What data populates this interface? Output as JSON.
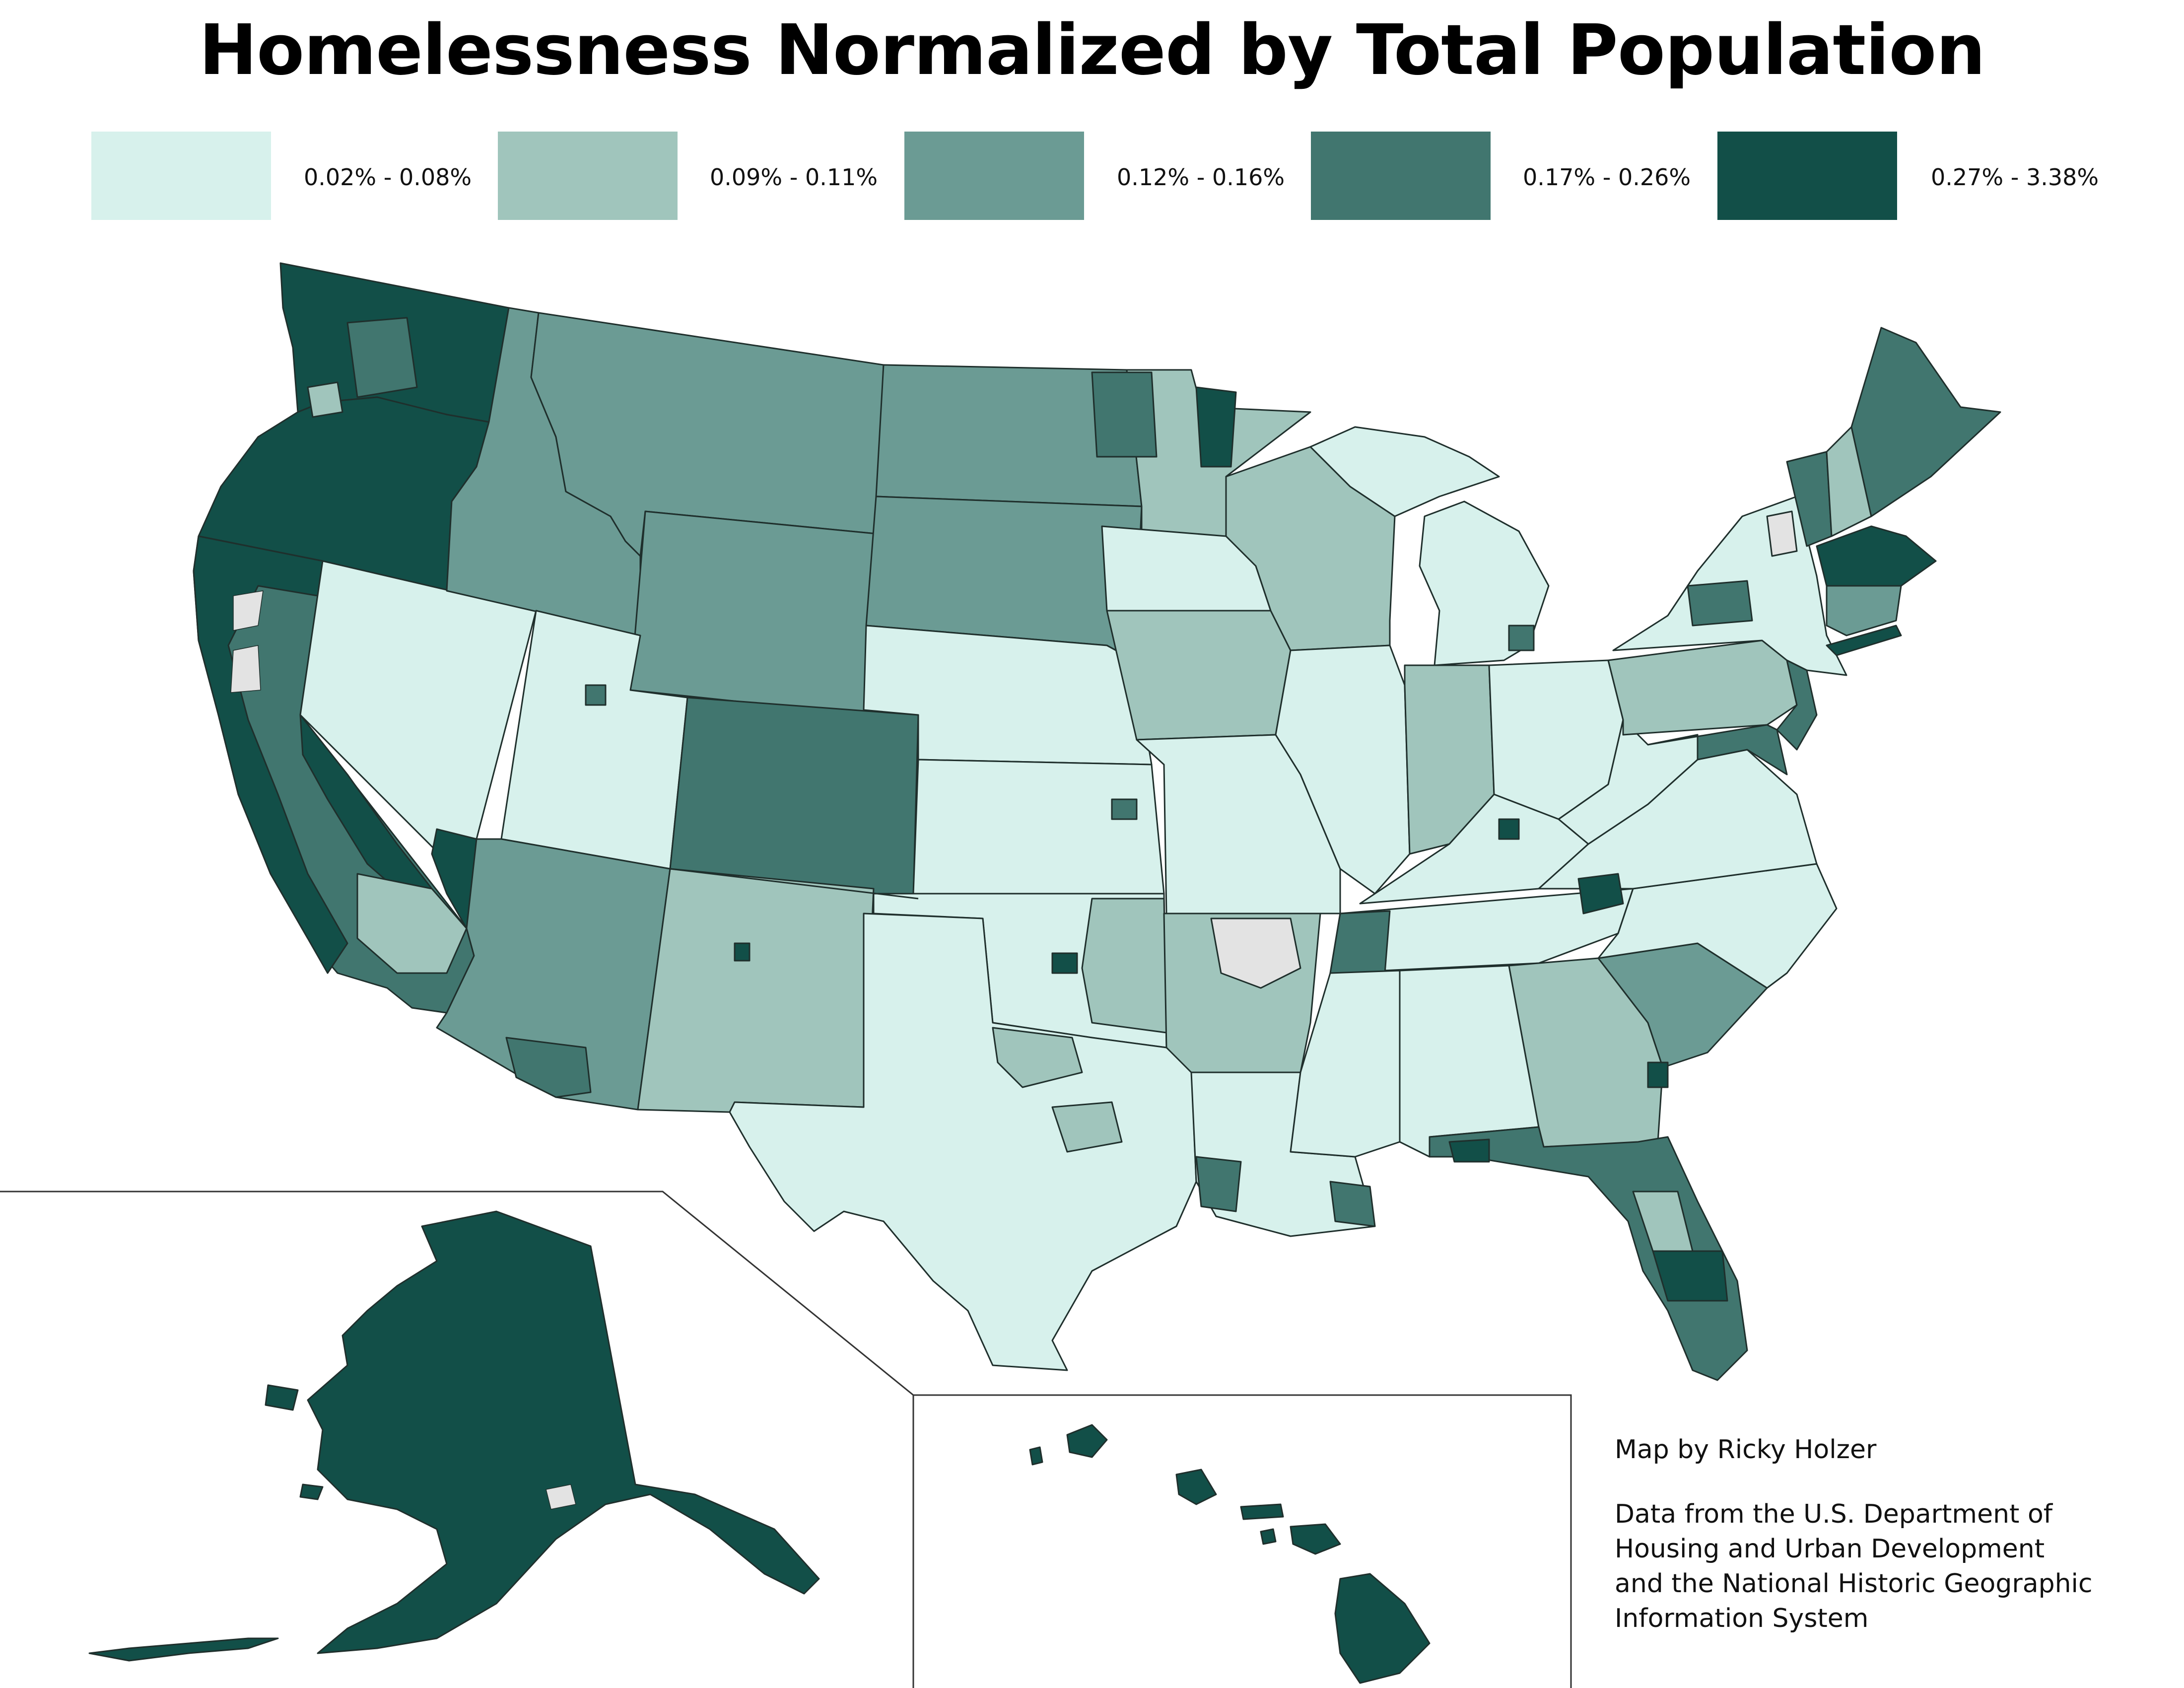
{
  "title": "Homelessness Normalized by Total Population",
  "legend": [
    {
      "label": "0.02% - 0.08%",
      "color": "#d7f1ec"
    },
    {
      "label": "0.09% - 0.11%",
      "color": "#a0c5bc"
    },
    {
      "label": "0.12% - 0.16%",
      "color": "#6b9b94"
    },
    {
      "label": "0.17% - 0.26%",
      "color": "#41766f"
    },
    {
      "label": "0.27% - 3.38%",
      "color": "#124f48"
    }
  ],
  "credits": {
    "author": "Map by Ricky Holzer",
    "source_line1": "Data from the U.S. Department of",
    "source_line2": "Housing and Urban Development",
    "source_line3": "and the National Historic Geographic",
    "source_line4": "Information System"
  },
  "colors": {
    "c1": "#d7f1ec",
    "c2": "#a0c5bc",
    "c3": "#6b9b94",
    "c4": "#41766f",
    "c5": "#124f48",
    "nodata": "#e3e3e3",
    "border": "#1f2f2c"
  }
}
